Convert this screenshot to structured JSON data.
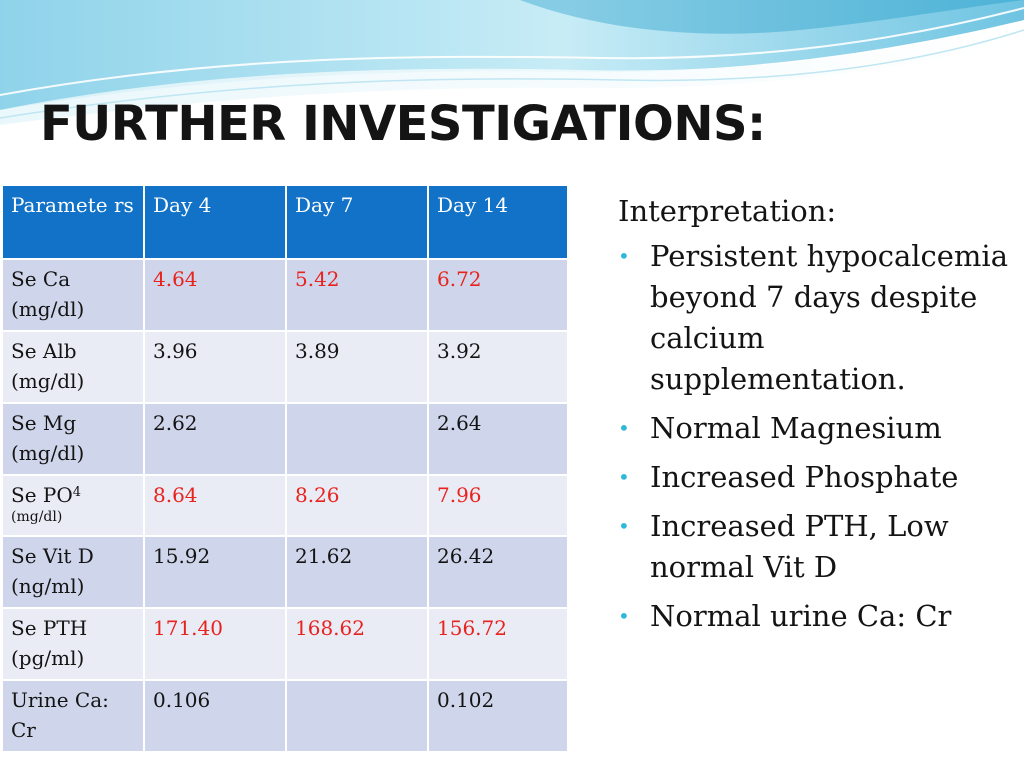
{
  "slide": {
    "title": "FURTHER INVESTIGATIONS:"
  },
  "table": {
    "headers": [
      "Paramete rs",
      "Day 4",
      "Day 7",
      "Day 14"
    ],
    "rows": [
      {
        "param": "Se Ca (mg/dl)",
        "day4": "4.64",
        "day7": "5.42",
        "day14": "6.72"
      },
      {
        "param": "Se Alb (mg/dl)",
        "day4": "3.96",
        "day7": "3.89",
        "day14": "3.92"
      },
      {
        "param": "Se Mg (mg/dl)",
        "day4": "2.62",
        "day7": "",
        "day14": "2.64"
      },
      {
        "param": "Se PO",
        "param_sup": "4",
        "param_unit": "(mg/dl)",
        "day4": "8.64",
        "day7": "8.26",
        "day14": "7.96"
      },
      {
        "param": "Se Vit D (ng/ml)",
        "day4": "15.92",
        "day7": "21.62",
        "day14": "26.42"
      },
      {
        "param": "Se PTH (pg/ml)",
        "day4": "171.40",
        "day7": "168.62",
        "day14": "156.72"
      },
      {
        "param": "Urine Ca: Cr",
        "day4": "0.106",
        "day7": "",
        "day14": "0.102"
      }
    ]
  },
  "interpretation": {
    "heading": "Interpretation:",
    "bullets": [
      "Persistent hypocalcemia beyond 7 days despite calcium supplementation.",
      "Normal Magnesium",
      "Increased Phosphate",
      "Increased PTH, Low normal Vit D",
      "Normal urine Ca: Cr"
    ]
  },
  "colors": {
    "header_blue": "#1172c7",
    "abnormal_red": "#e8231e",
    "row_dark": "#cfd5ea",
    "row_light": "#e9ebf5",
    "bullet_cyan": "#2fb9d8"
  }
}
